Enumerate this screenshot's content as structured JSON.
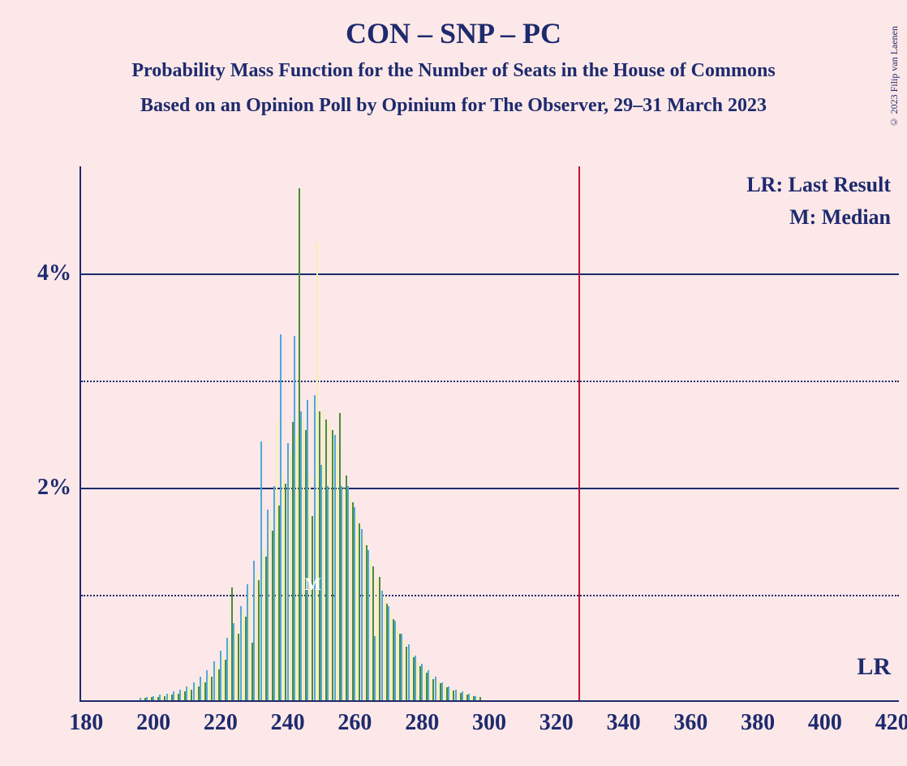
{
  "title": "CON – SNP – PC",
  "subtitle": "Probability Mass Function for the Number of Seats in the House of Commons",
  "subtitle2": "Based on an Opinion Poll by Opinium for The Observer, 29–31 March 2023",
  "copyright": "© 2023 Filip van Laenen",
  "legend": {
    "last_result": "LR: Last Result",
    "median": "M: Median"
  },
  "lr_text": "LR",
  "m_text": "M",
  "chart": {
    "type": "bar-pmf",
    "background_color": "#fce8e8",
    "axis_color": "#1e2a6e",
    "text_color": "#1e2a6e",
    "title_fontsize": 36,
    "subtitle_fontsize": 24,
    "axis_label_fontsize": 28,
    "legend_fontsize": 26,
    "xlim": [
      178,
      422
    ],
    "ylim": [
      0,
      5
    ],
    "ytick_major": [
      2,
      4
    ],
    "ytick_minor": [
      1,
      3
    ],
    "ytick_labels": [
      "2%",
      "4%"
    ],
    "xtick_step": 20,
    "xtick_labels": [
      "180",
      "200",
      "220",
      "240",
      "260",
      "280",
      "300",
      "320",
      "340",
      "360",
      "380",
      "400",
      "420"
    ],
    "grid_solid_color": "#1e2a6e",
    "grid_dotted_color": "#1e2a6e",
    "last_result_x": 326,
    "last_result_line_color": "#c4122f",
    "median_x": 247,
    "series_colors": {
      "blue": "#4fa8d8",
      "yellow": "#f5f0b0",
      "green": "#4a8c3a"
    },
    "bars": [
      {
        "x": 196,
        "b": 0.02,
        "y": 0.02,
        "g": 0.02
      },
      {
        "x": 198,
        "b": 0.03,
        "y": 0.03,
        "g": 0.03
      },
      {
        "x": 200,
        "b": 0.04,
        "y": 0.04,
        "g": 0.03
      },
      {
        "x": 202,
        "b": 0.05,
        "y": 0.05,
        "g": 0.04
      },
      {
        "x": 204,
        "b": 0.06,
        "y": 0.06,
        "g": 0.05
      },
      {
        "x": 206,
        "b": 0.08,
        "y": 0.07,
        "g": 0.06
      },
      {
        "x": 208,
        "b": 0.1,
        "y": 0.09,
        "g": 0.08
      },
      {
        "x": 210,
        "b": 0.13,
        "y": 0.12,
        "g": 0.1
      },
      {
        "x": 212,
        "b": 0.17,
        "y": 0.15,
        "g": 0.13
      },
      {
        "x": 214,
        "b": 0.22,
        "y": 0.2,
        "g": 0.17
      },
      {
        "x": 216,
        "b": 0.28,
        "y": 0.25,
        "g": 0.22
      },
      {
        "x": 218,
        "b": 0.36,
        "y": 0.33,
        "g": 0.29
      },
      {
        "x": 220,
        "b": 0.46,
        "y": 0.42,
        "g": 0.38
      },
      {
        "x": 222,
        "b": 0.58,
        "y": 0.54,
        "g": 1.05
      },
      {
        "x": 224,
        "b": 0.72,
        "y": 0.68,
        "g": 0.62
      },
      {
        "x": 226,
        "b": 0.88,
        "y": 0.84,
        "g": 0.78
      },
      {
        "x": 228,
        "b": 1.08,
        "y": 1.0,
        "g": 0.54
      },
      {
        "x": 230,
        "b": 1.3,
        "y": 1.2,
        "g": 1.12
      },
      {
        "x": 232,
        "b": 2.42,
        "y": 1.42,
        "g": 1.34
      },
      {
        "x": 234,
        "b": 1.78,
        "y": 1.68,
        "g": 1.58
      },
      {
        "x": 236,
        "b": 2.0,
        "y": 2.6,
        "g": 1.82
      },
      {
        "x": 238,
        "b": 3.42,
        "y": 2.12,
        "g": 2.02
      },
      {
        "x": 240,
        "b": 2.4,
        "y": 2.3,
        "g": 2.6
      },
      {
        "x": 242,
        "b": 3.4,
        "y": 2.48,
        "g": 4.78
      },
      {
        "x": 244,
        "b": 2.7,
        "y": 2.62,
        "g": 2.52
      },
      {
        "x": 246,
        "b": 2.8,
        "y": 2.1,
        "g": 1.72
      },
      {
        "x": 248,
        "b": 2.85,
        "y": 4.28,
        "g": 2.7
      },
      {
        "x": 250,
        "b": 2.2,
        "y": 2.72,
        "g": 2.62
      },
      {
        "x": 252,
        "b": 2.0,
        "y": 2.6,
        "g": 2.52
      },
      {
        "x": 254,
        "b": 2.48,
        "y": 2.4,
        "g": 2.68
      },
      {
        "x": 256,
        "b": 2.0,
        "y": 1.98,
        "g": 2.1
      },
      {
        "x": 258,
        "b": 2.0,
        "y": 1.92,
        "g": 1.85
      },
      {
        "x": 260,
        "b": 1.8,
        "y": 1.72,
        "g": 1.65
      },
      {
        "x": 262,
        "b": 1.6,
        "y": 1.52,
        "g": 1.45
      },
      {
        "x": 264,
        "b": 1.4,
        "y": 1.32,
        "g": 1.25
      },
      {
        "x": 266,
        "b": 0.6,
        "y": 1.14,
        "g": 1.15
      },
      {
        "x": 268,
        "b": 1.02,
        "y": 0.96,
        "g": 0.9
      },
      {
        "x": 270,
        "b": 0.88,
        "y": 0.82,
        "g": 0.76
      },
      {
        "x": 272,
        "b": 0.74,
        "y": 0.68,
        "g": 0.62
      },
      {
        "x": 274,
        "b": 0.62,
        "y": 0.56,
        "g": 0.5
      },
      {
        "x": 276,
        "b": 0.52,
        "y": 0.46,
        "g": 0.4
      },
      {
        "x": 278,
        "b": 0.42,
        "y": 0.36,
        "g": 0.32
      },
      {
        "x": 280,
        "b": 0.34,
        "y": 0.3,
        "g": 0.26
      },
      {
        "x": 282,
        "b": 0.28,
        "y": 0.24,
        "g": 0.2
      },
      {
        "x": 284,
        "b": 0.22,
        "y": 0.19,
        "g": 0.16
      },
      {
        "x": 286,
        "b": 0.17,
        "y": 0.15,
        "g": 0.12
      },
      {
        "x": 288,
        "b": 0.13,
        "y": 0.11,
        "g": 0.09
      },
      {
        "x": 290,
        "b": 0.1,
        "y": 0.08,
        "g": 0.07
      },
      {
        "x": 292,
        "b": 0.08,
        "y": 0.06,
        "g": 0.05
      },
      {
        "x": 294,
        "b": 0.06,
        "y": 0.05,
        "g": 0.04
      },
      {
        "x": 296,
        "b": 0.04,
        "y": 0.03,
        "g": 0.03
      }
    ]
  }
}
